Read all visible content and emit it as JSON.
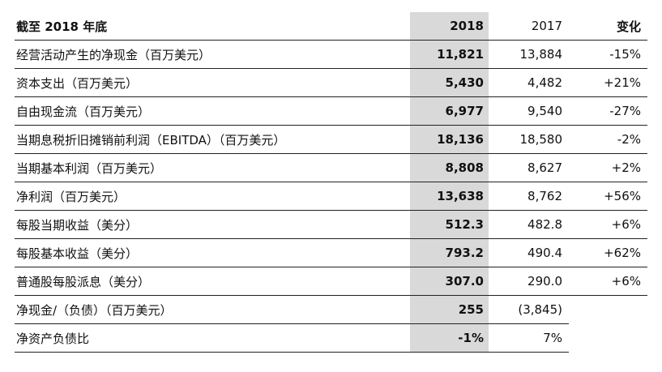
{
  "table": {
    "header": {
      "label": "截至 2018 年底",
      "col_2018": "2018",
      "col_2017": "2017",
      "col_change": "变化"
    },
    "rows": [
      {
        "label": "经营活动产生的净现金（百万美元）",
        "v2018": "11,821",
        "v2017": "13,884",
        "change": "-15%"
      },
      {
        "label": "资本支出（百万美元）",
        "v2018": "5,430",
        "v2017": "4,482",
        "change": "+21%"
      },
      {
        "label": "自由现金流（百万美元）",
        "v2018": "6,977",
        "v2017": "9,540",
        "change": "-27%"
      },
      {
        "label": "当期息税折旧摊销前利润（EBITDA）（百万美元）",
        "v2018": "18,136",
        "v2017": "18,580",
        "change": "-2%"
      },
      {
        "label": "当期基本利润（百万美元）",
        "v2018": "8,808",
        "v2017": "8,627",
        "change": "+2%"
      },
      {
        "label": "净利润（百万美元）",
        "v2018": "13,638",
        "v2017": "8,762",
        "change": "+56%"
      },
      {
        "label": "每股当期收益（美分）",
        "v2018": "512.3",
        "v2017": "482.8",
        "change": "+6%"
      },
      {
        "label": "每股基本收益（美分）",
        "v2018": "793.2",
        "v2017": "490.4",
        "change": "+62%"
      },
      {
        "label": "普通股每股派息（美分）",
        "v2018": "307.0",
        "v2017": "290.0",
        "change": "+6%"
      },
      {
        "label": "净现金/（负债）（百万美元）",
        "v2018": "255",
        "v2017": "(3,845)",
        "change": ""
      },
      {
        "label": "净资产负债比",
        "v2018": "-1%",
        "v2017": "7%",
        "change": ""
      }
    ]
  }
}
